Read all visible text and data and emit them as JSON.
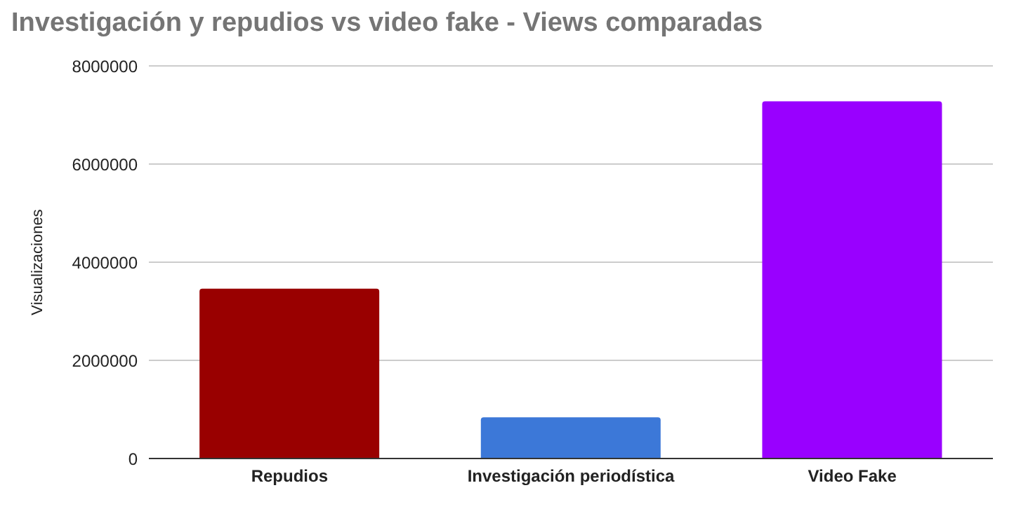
{
  "chart_data": {
    "type": "bar",
    "title": "Investigación y repudios vs video fake - Views comparadas",
    "ylabel": "Visualizaciones",
    "categories": [
      "Repudios",
      "Investigación periodística",
      "Video Fake"
    ],
    "values": [
      3460000,
      840000,
      7280000
    ],
    "colors": [
      "#990000",
      "#3c78d8",
      "#9900ff"
    ],
    "ylim": [
      0,
      8000000
    ],
    "yticks": [
      0,
      2000000,
      4000000,
      6000000,
      8000000
    ],
    "grid": "y"
  }
}
